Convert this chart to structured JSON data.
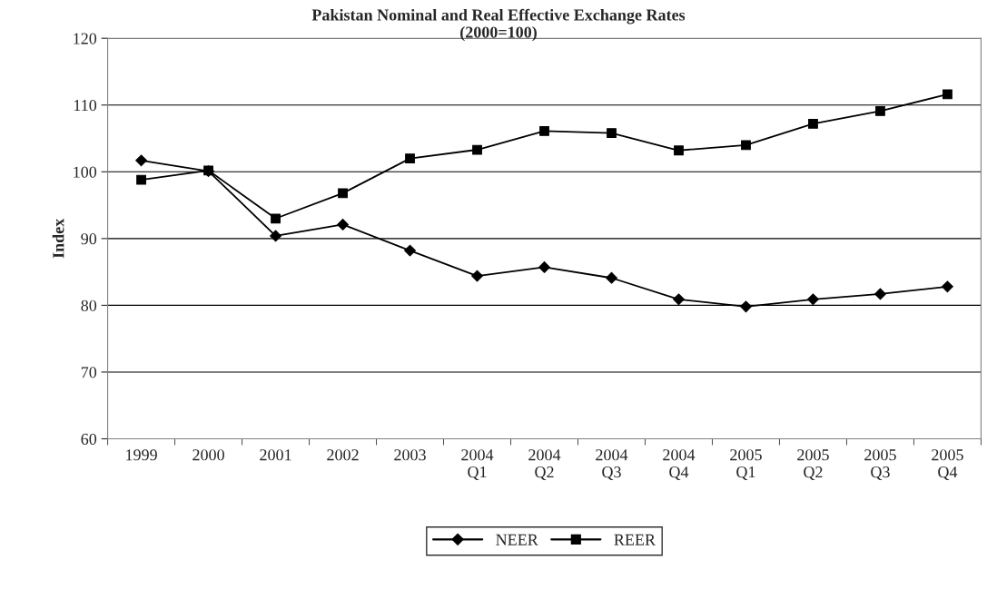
{
  "chart_data": {
    "type": "line",
    "title": "Pakistan Nominal and Real Effective Exchange Rates\n(2000=100)",
    "ylabel": "Index",
    "categories": [
      "1999",
      "2000",
      "2001",
      "2002",
      "2003",
      "2004\nQ1",
      "2004\nQ2",
      "2004\nQ3",
      "2004\nQ4",
      "2005\nQ1",
      "2005\nQ2",
      "2005\nQ3",
      "2005\nQ4"
    ],
    "series": [
      {
        "name": "NEER",
        "color": "#000000",
        "marker": "diamond",
        "values": [
          101.7,
          100.1,
          90.4,
          92.1,
          88.2,
          84.4,
          85.7,
          84.1,
          80.9,
          79.8,
          80.9,
          81.7,
          82.8
        ]
      },
      {
        "name": "REER",
        "color": "#000000",
        "marker": "square",
        "values": [
          98.8,
          100.2,
          93.0,
          96.8,
          102.0,
          103.3,
          106.1,
          105.8,
          103.2,
          104.0,
          107.2,
          109.1,
          111.6
        ]
      }
    ],
    "ylim": [
      60,
      120
    ],
    "yticks": [
      60,
      70,
      80,
      90,
      100,
      110,
      120
    ],
    "grid": "y",
    "legend": "bottom",
    "line_style": "solid"
  }
}
